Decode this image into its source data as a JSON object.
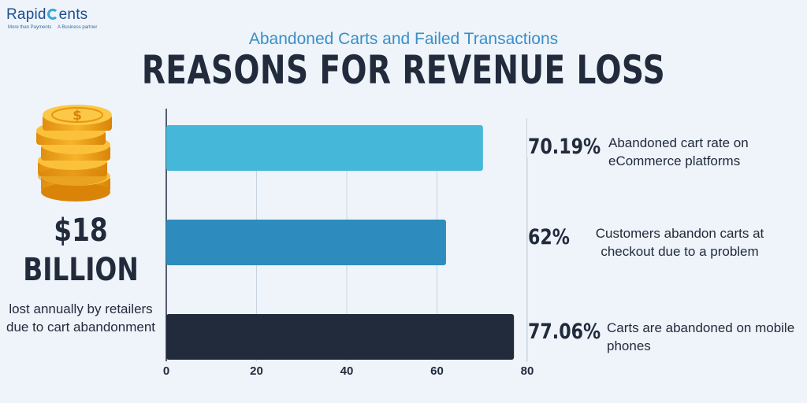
{
  "logo": {
    "name_left": "Rapid",
    "name_right": "ents",
    "tagline_left": "More than Payments",
    "tagline_right": "A Business partner"
  },
  "header": {
    "subtitle": "Abandoned Carts and Failed Transactions",
    "title": "REASONS FOR REVENUE LOSS"
  },
  "side_stat": {
    "amount": "$18",
    "unit": "BILLION",
    "caption": "lost annually by retailers due to cart abandonment"
  },
  "stats": [
    {
      "value_label": "70.19%",
      "description": "Abandoned cart rate on eCommerce platforms"
    },
    {
      "value_label": "62%",
      "description": "Customers abandon carts at checkout due to a problem"
    },
    {
      "value_label": "77.06%",
      "description": "Carts are abandoned on mobile phones"
    }
  ],
  "chart_data": {
    "type": "bar",
    "orientation": "horizontal",
    "values": [
      70.19,
      62,
      77.06
    ],
    "colors": [
      "#45b8d9",
      "#2e8bbd",
      "#222b3c"
    ],
    "xlim": [
      0,
      80
    ],
    "xticks": [
      0,
      20,
      40,
      60,
      80
    ],
    "grid": true
  }
}
